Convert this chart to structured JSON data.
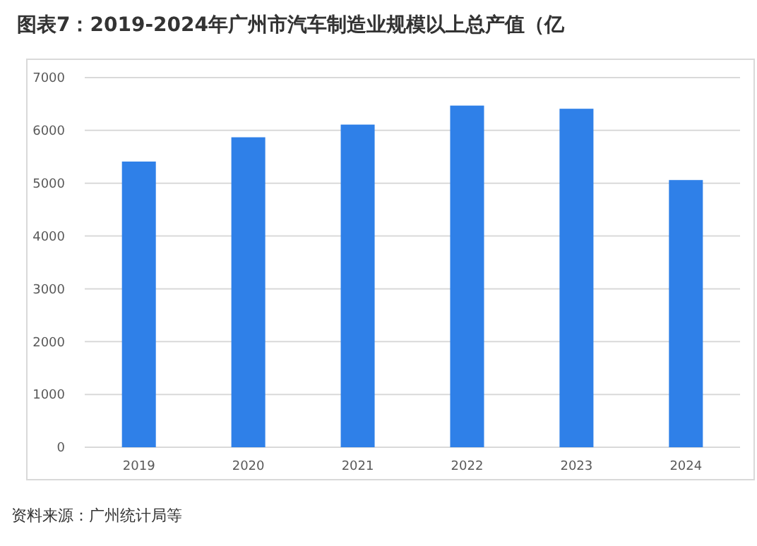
{
  "chart_data": {
    "type": "bar",
    "title": "图表7：2019-2024年广州市汽车制造业规模以上总产值（亿",
    "categories": [
      "2019",
      "2020",
      "2021",
      "2022",
      "2023",
      "2024"
    ],
    "values": [
      5410,
      5870,
      6110,
      6470,
      6410,
      5060
    ],
    "color": "#2f80e8",
    "ylim": [
      0,
      7000
    ],
    "yticks": [
      0,
      1000,
      2000,
      3000,
      4000,
      5000,
      6000,
      7000
    ],
    "grid": "y",
    "annotations": [
      "资料来源：广州统计局等"
    ]
  }
}
